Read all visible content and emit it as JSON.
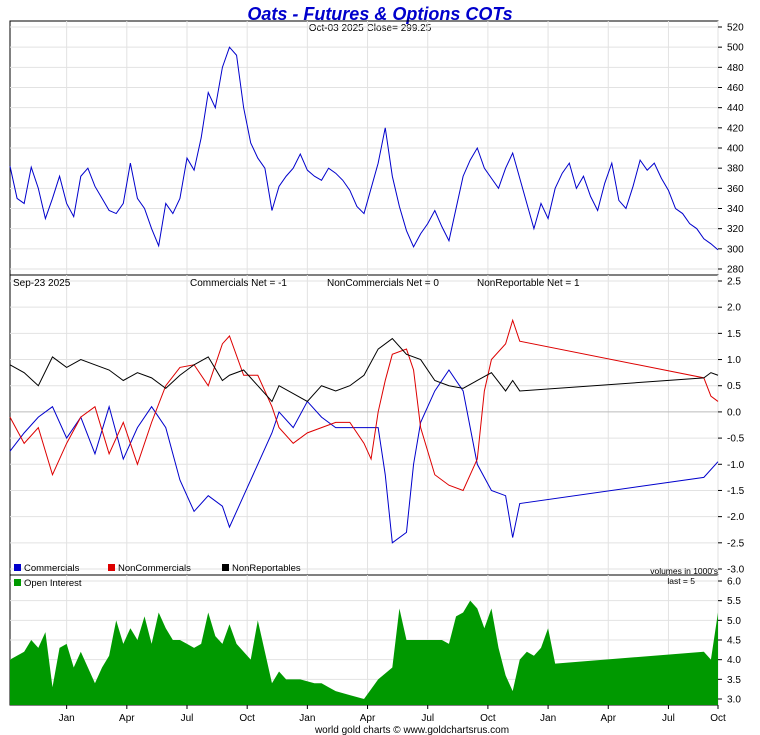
{
  "title": "Oats - Futures & Options COTs",
  "subtitle": "Oct-03  2025   Close= 299.25",
  "footer": "world gold charts © www.goldchartsrus.com",
  "colors": {
    "title": "#0000cc",
    "price": "#0000cc",
    "commercials": "#0000cc",
    "noncommercials": "#dd0000",
    "nonreportables": "#000000",
    "open_interest": "#009900"
  },
  "chart_data": [
    {
      "type": "line",
      "name": "price",
      "ylim": [
        280,
        520
      ],
      "yticks": [
        280,
        300,
        320,
        340,
        360,
        380,
        400,
        420,
        440,
        460,
        480,
        500,
        520
      ],
      "points": [
        [
          0.0,
          382
        ],
        [
          0.01,
          350
        ],
        [
          0.02,
          345
        ],
        [
          0.03,
          381
        ],
        [
          0.04,
          360
        ],
        [
          0.05,
          330
        ],
        [
          0.06,
          350
        ],
        [
          0.07,
          372
        ],
        [
          0.08,
          345
        ],
        [
          0.09,
          332
        ],
        [
          0.1,
          372
        ],
        [
          0.11,
          380
        ],
        [
          0.12,
          362
        ],
        [
          0.13,
          350
        ],
        [
          0.14,
          338
        ],
        [
          0.15,
          335
        ],
        [
          0.16,
          345
        ],
        [
          0.17,
          385
        ],
        [
          0.18,
          350
        ],
        [
          0.19,
          340
        ],
        [
          0.2,
          320
        ],
        [
          0.21,
          303
        ],
        [
          0.22,
          345
        ],
        [
          0.23,
          335
        ],
        [
          0.24,
          350
        ],
        [
          0.25,
          390
        ],
        [
          0.26,
          378
        ],
        [
          0.27,
          410
        ],
        [
          0.28,
          455
        ],
        [
          0.29,
          440
        ],
        [
          0.3,
          480
        ],
        [
          0.31,
          500
        ],
        [
          0.32,
          492
        ],
        [
          0.33,
          440
        ],
        [
          0.34,
          405
        ],
        [
          0.35,
          390
        ],
        [
          0.36,
          380
        ],
        [
          0.37,
          338
        ],
        [
          0.38,
          362
        ],
        [
          0.39,
          372
        ],
        [
          0.4,
          380
        ],
        [
          0.41,
          394
        ],
        [
          0.42,
          378
        ],
        [
          0.43,
          372
        ],
        [
          0.44,
          368
        ],
        [
          0.45,
          380
        ],
        [
          0.46,
          375
        ],
        [
          0.47,
          368
        ],
        [
          0.48,
          358
        ],
        [
          0.49,
          342
        ],
        [
          0.5,
          335
        ],
        [
          0.51,
          360
        ],
        [
          0.52,
          385
        ],
        [
          0.53,
          420
        ],
        [
          0.54,
          372
        ],
        [
          0.55,
          342
        ],
        [
          0.56,
          318
        ],
        [
          0.57,
          302
        ],
        [
          0.58,
          315
        ],
        [
          0.59,
          325
        ],
        [
          0.6,
          338
        ],
        [
          0.61,
          322
        ],
        [
          0.62,
          308
        ],
        [
          0.63,
          340
        ],
        [
          0.64,
          372
        ],
        [
          0.65,
          388
        ],
        [
          0.66,
          400
        ],
        [
          0.67,
          380
        ],
        [
          0.68,
          370
        ],
        [
          0.69,
          360
        ],
        [
          0.7,
          380
        ],
        [
          0.71,
          395
        ],
        [
          0.72,
          370
        ],
        [
          0.73,
          345
        ],
        [
          0.74,
          320
        ],
        [
          0.75,
          345
        ],
        [
          0.76,
          330
        ],
        [
          0.77,
          360
        ],
        [
          0.78,
          375
        ],
        [
          0.79,
          385
        ],
        [
          0.8,
          360
        ],
        [
          0.81,
          372
        ],
        [
          0.82,
          352
        ],
        [
          0.83,
          338
        ],
        [
          0.84,
          365
        ],
        [
          0.85,
          385
        ],
        [
          0.86,
          348
        ],
        [
          0.87,
          340
        ],
        [
          0.88,
          362
        ],
        [
          0.89,
          388
        ],
        [
          0.9,
          378
        ],
        [
          0.91,
          385
        ],
        [
          0.92,
          370
        ],
        [
          0.93,
          358
        ],
        [
          0.94,
          340
        ],
        [
          0.95,
          335
        ],
        [
          0.96,
          325
        ],
        [
          0.97,
          320
        ],
        [
          0.98,
          310
        ],
        [
          0.99,
          305
        ],
        [
          1.0,
          299
        ]
      ]
    },
    {
      "type": "line",
      "name": "cot",
      "date_label": "Sep-23  2025",
      "labels": {
        "commercials": "Commercials Net = -1",
        "noncommercials": "NonCommercials Net = 0",
        "nonreportable": "NonReportable Net = 1"
      },
      "ylim": [
        -3.0,
        2.5
      ],
      "yticks": [
        -3.0,
        -2.5,
        -2.0,
        -1.5,
        -1.0,
        -0.5,
        0.0,
        0.5,
        1.0,
        1.5,
        2.0,
        2.5
      ],
      "legend": [
        "Commercials",
        "NonCommercials",
        "NonReportables"
      ],
      "series": [
        {
          "name": "Commercials",
          "points": [
            [
              0.0,
              -0.75
            ],
            [
              0.02,
              -0.4
            ],
            [
              0.04,
              -0.1
            ],
            [
              0.06,
              0.1
            ],
            [
              0.08,
              -0.5
            ],
            [
              0.1,
              -0.1
            ],
            [
              0.12,
              -0.8
            ],
            [
              0.14,
              0.1
            ],
            [
              0.16,
              -0.9
            ],
            [
              0.18,
              -0.3
            ],
            [
              0.2,
              0.1
            ],
            [
              0.22,
              -0.3
            ],
            [
              0.24,
              -1.3
            ],
            [
              0.26,
              -1.9
            ],
            [
              0.28,
              -1.6
            ],
            [
              0.3,
              -1.8
            ],
            [
              0.31,
              -2.2
            ],
            [
              0.33,
              -1.6
            ],
            [
              0.35,
              -1.0
            ],
            [
              0.37,
              -0.4
            ],
            [
              0.38,
              0.0
            ],
            [
              0.4,
              -0.3
            ],
            [
              0.42,
              0.2
            ],
            [
              0.44,
              -0.1
            ],
            [
              0.46,
              -0.3
            ],
            [
              0.48,
              -0.3
            ],
            [
              0.5,
              -0.3
            ],
            [
              0.52,
              -0.3
            ],
            [
              0.53,
              -1.2
            ],
            [
              0.54,
              -2.5
            ],
            [
              0.56,
              -2.3
            ],
            [
              0.57,
              -1.0
            ],
            [
              0.58,
              -0.2
            ],
            [
              0.6,
              0.4
            ],
            [
              0.62,
              0.8
            ],
            [
              0.64,
              0.4
            ],
            [
              0.66,
              -1.0
            ],
            [
              0.68,
              -1.5
            ],
            [
              0.7,
              -1.6
            ],
            [
              0.71,
              -2.4
            ],
            [
              0.72,
              -1.75
            ],
            [
              0.98,
              -1.25
            ],
            [
              1.0,
              -0.95
            ]
          ]
        },
        {
          "name": "NonCommercials",
          "points": [
            [
              0.0,
              -0.1
            ],
            [
              0.02,
              -0.6
            ],
            [
              0.04,
              -0.3
            ],
            [
              0.06,
              -1.2
            ],
            [
              0.08,
              -0.6
            ],
            [
              0.1,
              -0.1
            ],
            [
              0.12,
              0.1
            ],
            [
              0.14,
              -0.8
            ],
            [
              0.16,
              -0.2
            ],
            [
              0.18,
              -1.0
            ],
            [
              0.2,
              -0.2
            ],
            [
              0.22,
              0.5
            ],
            [
              0.24,
              0.85
            ],
            [
              0.26,
              0.9
            ],
            [
              0.28,
              0.5
            ],
            [
              0.3,
              1.3
            ],
            [
              0.31,
              1.45
            ],
            [
              0.33,
              0.7
            ],
            [
              0.35,
              0.7
            ],
            [
              0.37,
              0.1
            ],
            [
              0.38,
              -0.3
            ],
            [
              0.4,
              -0.6
            ],
            [
              0.42,
              -0.4
            ],
            [
              0.44,
              -0.3
            ],
            [
              0.46,
              -0.2
            ],
            [
              0.48,
              -0.2
            ],
            [
              0.5,
              -0.6
            ],
            [
              0.51,
              -0.9
            ],
            [
              0.52,
              0.0
            ],
            [
              0.53,
              0.6
            ],
            [
              0.54,
              1.1
            ],
            [
              0.56,
              1.2
            ],
            [
              0.57,
              0.8
            ],
            [
              0.58,
              -0.3
            ],
            [
              0.6,
              -1.2
            ],
            [
              0.62,
              -1.4
            ],
            [
              0.64,
              -1.5
            ],
            [
              0.66,
              -0.9
            ],
            [
              0.67,
              0.4
            ],
            [
              0.68,
              1.0
            ],
            [
              0.7,
              1.3
            ],
            [
              0.71,
              1.75
            ],
            [
              0.72,
              1.35
            ],
            [
              0.98,
              0.65
            ],
            [
              0.99,
              0.3
            ],
            [
              1.0,
              0.2
            ]
          ]
        },
        {
          "name": "NonReportables",
          "points": [
            [
              0.0,
              0.9
            ],
            [
              0.02,
              0.75
            ],
            [
              0.04,
              0.5
            ],
            [
              0.06,
              1.05
            ],
            [
              0.08,
              0.85
            ],
            [
              0.1,
              1.0
            ],
            [
              0.12,
              0.9
            ],
            [
              0.14,
              0.8
            ],
            [
              0.16,
              0.6
            ],
            [
              0.18,
              0.75
            ],
            [
              0.2,
              0.65
            ],
            [
              0.22,
              0.45
            ],
            [
              0.24,
              0.7
            ],
            [
              0.26,
              0.9
            ],
            [
              0.28,
              1.05
            ],
            [
              0.3,
              0.6
            ],
            [
              0.31,
              0.7
            ],
            [
              0.33,
              0.8
            ],
            [
              0.35,
              0.5
            ],
            [
              0.37,
              0.2
            ],
            [
              0.38,
              0.5
            ],
            [
              0.4,
              0.35
            ],
            [
              0.42,
              0.2
            ],
            [
              0.44,
              0.5
            ],
            [
              0.46,
              0.4
            ],
            [
              0.48,
              0.5
            ],
            [
              0.5,
              0.7
            ],
            [
              0.52,
              1.2
            ],
            [
              0.54,
              1.4
            ],
            [
              0.56,
              1.1
            ],
            [
              0.58,
              1.0
            ],
            [
              0.6,
              0.6
            ],
            [
              0.62,
              0.5
            ],
            [
              0.64,
              0.45
            ],
            [
              0.66,
              0.6
            ],
            [
              0.68,
              0.75
            ],
            [
              0.7,
              0.4
            ],
            [
              0.71,
              0.6
            ],
            [
              0.72,
              0.4
            ],
            [
              0.98,
              0.65
            ],
            [
              0.99,
              0.75
            ],
            [
              1.0,
              0.7
            ]
          ]
        }
      ]
    },
    {
      "type": "area",
      "name": "open_interest",
      "legend": [
        "Open Interest"
      ],
      "units_note": "volumes in 1000's",
      "last_note": "last = 5",
      "ylim": [
        3.0,
        6.0
      ],
      "yticks": [
        3.0,
        3.5,
        4.0,
        4.5,
        5.0,
        5.5,
        6.0
      ],
      "points": [
        [
          0.0,
          4.0
        ],
        [
          0.02,
          4.2
        ],
        [
          0.03,
          4.5
        ],
        [
          0.04,
          4.3
        ],
        [
          0.05,
          4.7
        ],
        [
          0.06,
          3.3
        ],
        [
          0.07,
          4.3
        ],
        [
          0.08,
          4.4
        ],
        [
          0.09,
          3.8
        ],
        [
          0.1,
          4.2
        ],
        [
          0.11,
          3.8
        ],
        [
          0.12,
          3.4
        ],
        [
          0.13,
          3.8
        ],
        [
          0.14,
          4.1
        ],
        [
          0.15,
          5.0
        ],
        [
          0.16,
          4.4
        ],
        [
          0.17,
          4.8
        ],
        [
          0.18,
          4.5
        ],
        [
          0.19,
          5.1
        ],
        [
          0.2,
          4.4
        ],
        [
          0.21,
          5.2
        ],
        [
          0.22,
          4.8
        ],
        [
          0.23,
          4.5
        ],
        [
          0.24,
          4.5
        ],
        [
          0.25,
          4.4
        ],
        [
          0.26,
          4.3
        ],
        [
          0.27,
          4.4
        ],
        [
          0.28,
          5.2
        ],
        [
          0.29,
          4.6
        ],
        [
          0.3,
          4.4
        ],
        [
          0.31,
          4.9
        ],
        [
          0.32,
          4.4
        ],
        [
          0.34,
          4.0
        ],
        [
          0.35,
          5.0
        ],
        [
          0.36,
          4.2
        ],
        [
          0.37,
          3.4
        ],
        [
          0.38,
          3.7
        ],
        [
          0.39,
          3.5
        ],
        [
          0.4,
          3.5
        ],
        [
          0.41,
          3.5
        ],
        [
          0.43,
          3.4
        ],
        [
          0.44,
          3.4
        ],
        [
          0.45,
          3.3
        ],
        [
          0.46,
          3.2
        ],
        [
          0.48,
          3.1
        ],
        [
          0.5,
          3.0
        ],
        [
          0.52,
          3.5
        ],
        [
          0.54,
          3.8
        ],
        [
          0.55,
          5.3
        ],
        [
          0.56,
          4.5
        ],
        [
          0.58,
          4.5
        ],
        [
          0.6,
          4.5
        ],
        [
          0.61,
          4.5
        ],
        [
          0.62,
          4.4
        ],
        [
          0.63,
          5.1
        ],
        [
          0.64,
          5.2
        ],
        [
          0.65,
          5.5
        ],
        [
          0.66,
          5.3
        ],
        [
          0.67,
          4.8
        ],
        [
          0.68,
          5.3
        ],
        [
          0.69,
          4.3
        ],
        [
          0.7,
          3.6
        ],
        [
          0.71,
          3.2
        ],
        [
          0.72,
          4.0
        ],
        [
          0.73,
          4.2
        ],
        [
          0.74,
          4.1
        ],
        [
          0.75,
          4.3
        ],
        [
          0.76,
          4.8
        ],
        [
          0.77,
          3.9
        ],
        [
          0.98,
          4.2
        ],
        [
          0.99,
          4.0
        ],
        [
          1.0,
          5.2
        ]
      ]
    }
  ],
  "x_axis": {
    "labels": [
      "Jan",
      "Apr",
      "Jul",
      "Oct",
      "Jan",
      "Apr",
      "Jul",
      "Oct",
      "Jan",
      "Apr",
      "Jul",
      "Oct"
    ],
    "positions": [
      0.08,
      0.165,
      0.25,
      0.335,
      0.42,
      0.505,
      0.59,
      0.675,
      0.76,
      0.845,
      0.93,
      1.0
    ]
  }
}
